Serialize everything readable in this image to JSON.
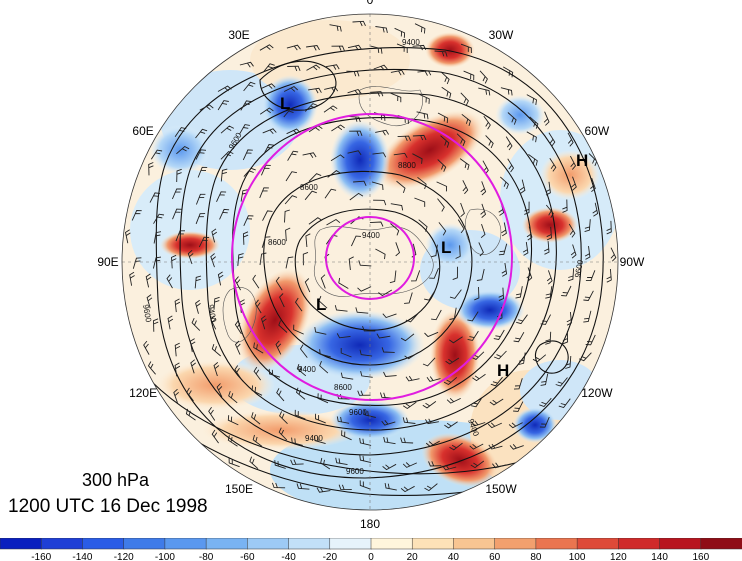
{
  "title": {
    "level": "300 hPa",
    "time": "1200 UTC 16 Dec 1998"
  },
  "longitude_labels": [
    {
      "text": "0",
      "angle_deg": -90
    },
    {
      "text": "30W",
      "angle_deg": -60
    },
    {
      "text": "60W",
      "angle_deg": -30
    },
    {
      "text": "90W",
      "angle_deg": 0
    },
    {
      "text": "120W",
      "angle_deg": 30
    },
    {
      "text": "150W",
      "angle_deg": 60
    },
    {
      "text": "180",
      "angle_deg": 90
    },
    {
      "text": "150E",
      "angle_deg": 120
    },
    {
      "text": "120E",
      "angle_deg": 150
    },
    {
      "text": "90E",
      "angle_deg": 180
    },
    {
      "text": "60E",
      "angle_deg": 210
    },
    {
      "text": "30E",
      "angle_deg": 240
    }
  ],
  "pressure_systems": [
    {
      "type": "L",
      "label": "L"
    },
    {
      "type": "L",
      "label": "L"
    },
    {
      "type": "L",
      "label": "L"
    },
    {
      "type": "H",
      "label": "H"
    },
    {
      "type": "H",
      "label": "H"
    }
  ],
  "contour_labels": [
    "9400",
    "9600",
    "8600",
    "8600",
    "9400",
    "8800",
    "9400",
    "9600",
    "9400",
    "9600",
    "8600",
    "9400",
    "9400",
    "9600",
    "9600"
  ],
  "colorbar": {
    "ticks": [
      "-160",
      "-140",
      "-120",
      "-100",
      "-80",
      "-60",
      "-40",
      "-20",
      "0",
      "20",
      "40",
      "60",
      "80",
      "100",
      "120",
      "140",
      "160"
    ],
    "colors": [
      "#0a1fbf",
      "#1f3fd6",
      "#2a5ce6",
      "#3f7be9",
      "#5a98ef",
      "#79b3f2",
      "#9dcaf5",
      "#c2e0f8",
      "#e6f3fb",
      "#fff5dc",
      "#fde2b8",
      "#f8c592",
      "#f2a06e",
      "#ea7550",
      "#de4a39",
      "#cf2a2a",
      "#b8151f",
      "#8f0d16"
    ]
  }
}
